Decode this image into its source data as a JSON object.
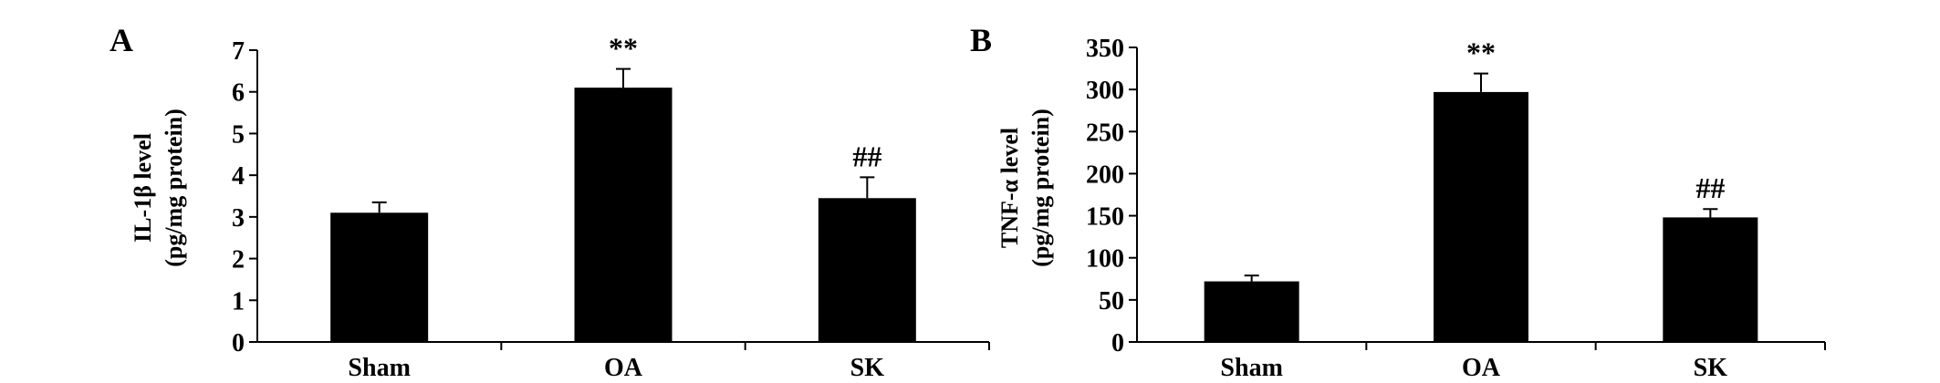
{
  "colors": {
    "bar": "#000000",
    "axis": "#000000",
    "background": "#ffffff"
  },
  "chart_data": [
    {
      "type": "bar",
      "panel": "A",
      "categories": [
        "Sham",
        "OA",
        "SK"
      ],
      "values": [
        3.1,
        6.1,
        3.45
      ],
      "errors": [
        0.25,
        0.45,
        0.5
      ],
      "annotations": [
        "",
        "**",
        "##"
      ],
      "ylabel_line1": "IL-1β level",
      "ylabel_line2": "(pg/mg protein)",
      "ylim": [
        0,
        7
      ],
      "yticks": [
        0,
        1,
        2,
        3,
        4,
        5,
        6,
        7
      ],
      "ytick_labels": [
        "0",
        "1",
        "2",
        "3",
        "4",
        "5",
        "6",
        "7"
      ],
      "grid": false,
      "legend": "none"
    },
    {
      "type": "bar",
      "panel": "B",
      "categories": [
        "Sham",
        "OA",
        "SK"
      ],
      "values": [
        72,
        297,
        148
      ],
      "errors": [
        7,
        22,
        10
      ],
      "annotations": [
        "",
        "**",
        "##"
      ],
      "ylabel_line1": "TNF-α level",
      "ylabel_line2": "(pg/mg protein)",
      "ylim": [
        0,
        350
      ],
      "yticks": [
        0,
        50,
        100,
        150,
        200,
        250,
        300,
        350
      ],
      "ytick_labels": [
        "0",
        "50",
        "100",
        "150",
        "200",
        "250",
        "300",
        "350"
      ],
      "grid": false,
      "legend": "none"
    }
  ]
}
